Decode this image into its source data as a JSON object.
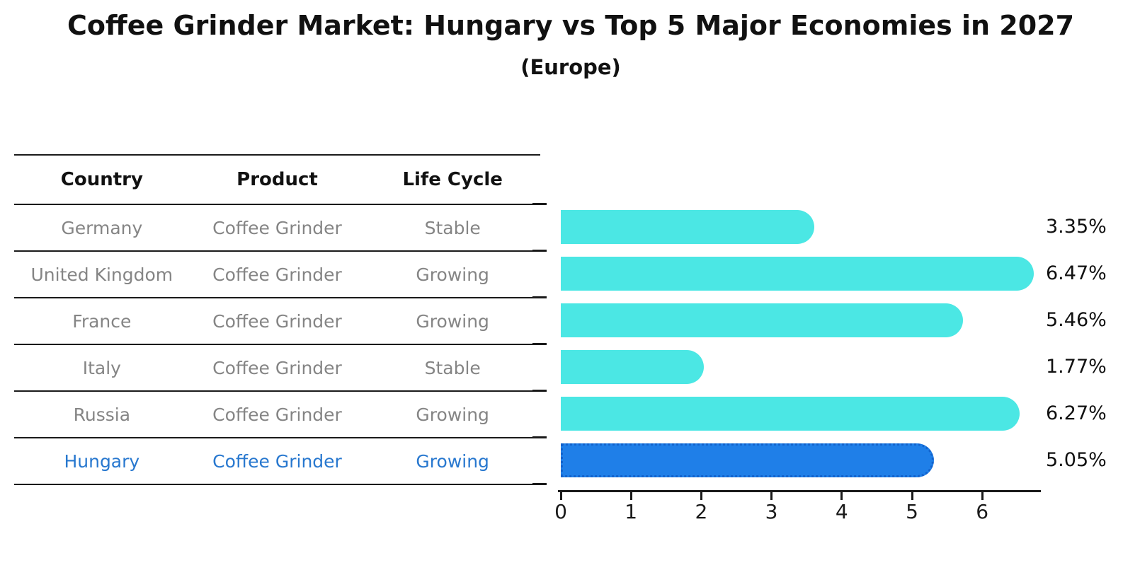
{
  "title": "Coffee Grinder Market: Hungary vs Top 5 Major Economies in 2027",
  "subtitle": "(Europe)",
  "table": {
    "headers": [
      "Country",
      "Product",
      "Life Cycle"
    ],
    "rows": [
      {
        "country": "Germany",
        "product": "Coffee Grinder",
        "life_cycle": "Stable",
        "highlight": false
      },
      {
        "country": "United Kingdom",
        "product": "Coffee Grinder",
        "life_cycle": "Growing",
        "highlight": false
      },
      {
        "country": "France",
        "product": "Coffee Grinder",
        "life_cycle": "Growing",
        "highlight": false
      },
      {
        "country": "Italy",
        "product": "Coffee Grinder",
        "life_cycle": "Stable",
        "highlight": false
      },
      {
        "country": "Russia",
        "product": "Coffee Grinder",
        "life_cycle": "Growing",
        "highlight": false
      },
      {
        "country": "Hungary",
        "product": "Coffee Grinder",
        "life_cycle": "Growing",
        "highlight": true
      }
    ]
  },
  "chart_data": {
    "type": "bar",
    "orientation": "horizontal",
    "title": "Coffee Grinder Market: Hungary vs Top 5 Major Economies in 2027 (Europe)",
    "categories": [
      "Germany",
      "United Kingdom",
      "France",
      "Italy",
      "Russia",
      "Hungary"
    ],
    "values": [
      3.35,
      6.47,
      5.46,
      1.77,
      6.27,
      5.05
    ],
    "value_labels": [
      "3.35%",
      "6.47%",
      "5.46%",
      "1.77%",
      "6.27%",
      "5.05%"
    ],
    "xticks": [
      "0",
      "1",
      "2",
      "3",
      "4",
      "5",
      "6"
    ],
    "xlim": [
      0,
      6.83
    ],
    "grid": false,
    "legend": null,
    "highlight_index": 5
  },
  "colors": {
    "bar": "#4BE7E4",
    "highlight_bar": "#1F7FE8",
    "highlight_border": "#1262CC",
    "highlight_text": "#2878CF",
    "row_text": "#858585",
    "header_text": "#111111",
    "axis": "#1A1A1A"
  }
}
